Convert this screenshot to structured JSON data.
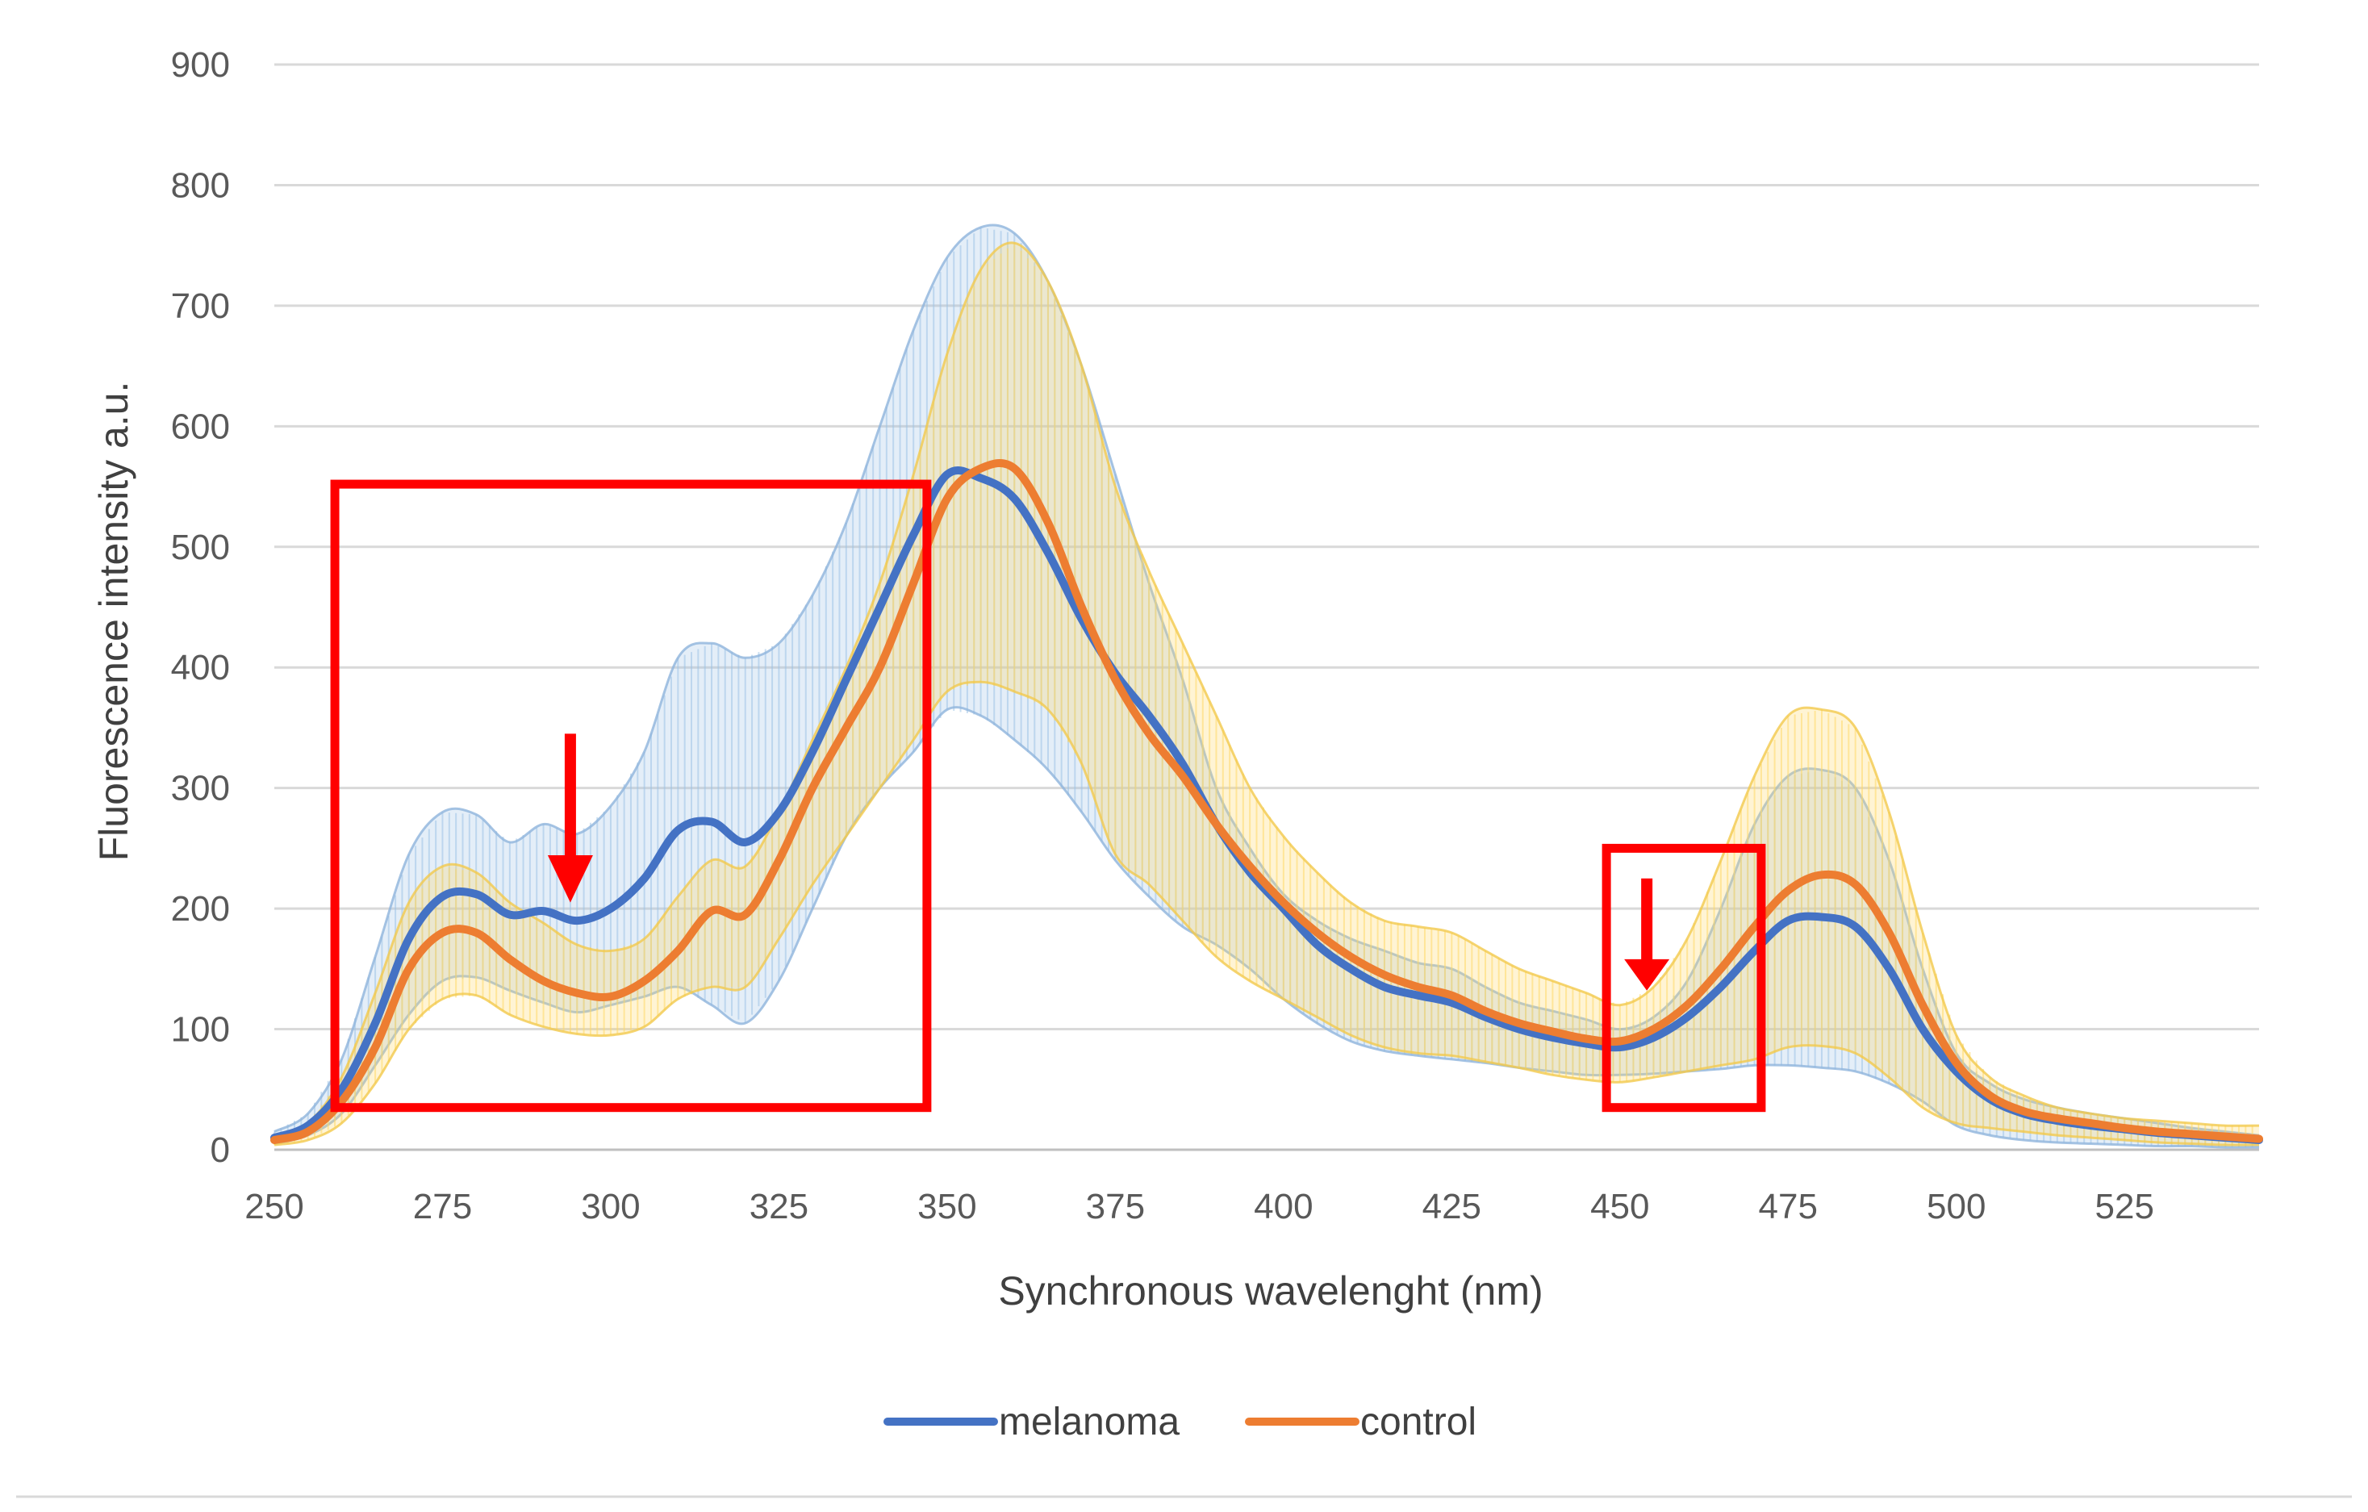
{
  "chart_data": {
    "type": "line",
    "title": "",
    "xlabel": "Synchronous wavelenght (nm)",
    "ylabel": "Fluorescence intensity a.u.",
    "xlim": [
      250,
      545
    ],
    "ylim": [
      0,
      900
    ],
    "xticks": [
      250,
      275,
      300,
      325,
      350,
      375,
      400,
      425,
      450,
      475,
      500,
      525
    ],
    "yticks": [
      0,
      100,
      200,
      300,
      400,
      500,
      600,
      700,
      800,
      900
    ],
    "grid": true,
    "legend_position": "bottom",
    "x": [
      250,
      255,
      260,
      265,
      270,
      275,
      280,
      285,
      290,
      295,
      300,
      305,
      310,
      315,
      320,
      325,
      330,
      335,
      340,
      345,
      350,
      355,
      360,
      365,
      370,
      375,
      380,
      385,
      390,
      395,
      400,
      405,
      410,
      415,
      420,
      425,
      430,
      435,
      440,
      445,
      450,
      455,
      460,
      465,
      470,
      475,
      480,
      485,
      490,
      495,
      500,
      505,
      510,
      515,
      520,
      525,
      530,
      535,
      540,
      545
    ],
    "series": [
      {
        "name": "melanoma",
        "color": "#4472C4",
        "values": [
          10,
          20,
          50,
          105,
          175,
          210,
          212,
          195,
          198,
          190,
          200,
          225,
          265,
          272,
          255,
          280,
          330,
          390,
          450,
          510,
          560,
          557,
          540,
          495,
          440,
          395,
          360,
          320,
          270,
          230,
          200,
          170,
          150,
          135,
          128,
          122,
          110,
          100,
          93,
          88,
          85,
          93,
          110,
          135,
          165,
          190,
          193,
          185,
          150,
          100,
          65,
          42,
          30,
          24,
          20,
          17,
          14,
          12,
          10,
          8
        ],
        "upper": [
          15,
          30,
          75,
          160,
          245,
          280,
          278,
          255,
          270,
          262,
          285,
          330,
          408,
          420,
          408,
          420,
          460,
          520,
          600,
          680,
          740,
          765,
          760,
          720,
          650,
          560,
          470,
          390,
          300,
          250,
          212,
          190,
          175,
          165,
          155,
          150,
          135,
          122,
          115,
          108,
          100,
          110,
          140,
          200,
          270,
          310,
          315,
          300,
          240,
          150,
          80,
          55,
          42,
          35,
          30,
          26,
          22,
          18,
          15,
          12
        ],
        "lower": [
          5,
          12,
          30,
          70,
          112,
          140,
          143,
          132,
          122,
          114,
          120,
          127,
          135,
          120,
          105,
          140,
          200,
          260,
          300,
          330,
          365,
          360,
          340,
          315,
          280,
          240,
          210,
          185,
          170,
          150,
          125,
          105,
          90,
          82,
          78,
          75,
          72,
          68,
          65,
          62,
          62,
          63,
          65,
          67,
          70,
          70,
          68,
          65,
          55,
          40,
          20,
          12,
          8,
          6,
          5,
          4,
          3,
          3,
          2,
          2
        ]
      },
      {
        "name": "control",
        "color": "#ED7D31",
        "values": [
          8,
          15,
          40,
          85,
          150,
          180,
          180,
          158,
          140,
          130,
          127,
          140,
          165,
          198,
          195,
          240,
          300,
          350,
          400,
          470,
          540,
          565,
          565,
          520,
          450,
          390,
          345,
          310,
          270,
          235,
          205,
          180,
          160,
          145,
          135,
          128,
          115,
          105,
          98,
          92,
          90,
          100,
          120,
          150,
          185,
          215,
          228,
          220,
          180,
          120,
          72,
          45,
          32,
          26,
          22,
          18,
          15,
          13,
          11,
          9
        ],
        "upper": [
          12,
          22,
          60,
          130,
          205,
          235,
          230,
          205,
          188,
          170,
          165,
          175,
          210,
          240,
          235,
          280,
          340,
          400,
          470,
          560,
          660,
          730,
          752,
          720,
          650,
          550,
          480,
          420,
          360,
          300,
          260,
          230,
          205,
          190,
          185,
          180,
          165,
          150,
          140,
          130,
          120,
          135,
          175,
          240,
          310,
          360,
          365,
          350,
          280,
          180,
          95,
          60,
          45,
          35,
          30,
          26,
          24,
          22,
          20,
          20
        ],
        "lower": [
          4,
          8,
          22,
          55,
          100,
          125,
          128,
          112,
          102,
          96,
          95,
          102,
          125,
          135,
          135,
          175,
          220,
          260,
          300,
          340,
          380,
          388,
          380,
          365,
          320,
          245,
          220,
          190,
          160,
          140,
          125,
          110,
          95,
          85,
          80,
          78,
          73,
          68,
          62,
          58,
          56,
          60,
          65,
          70,
          75,
          85,
          86,
          80,
          60,
          35,
          22,
          18,
          15,
          12,
          10,
          8,
          6,
          5,
          4,
          4
        ]
      }
    ],
    "annotations": [
      {
        "type": "rect",
        "x_range": [
          259,
          347
        ],
        "y_range": [
          35,
          552
        ],
        "color": "#FF0000"
      },
      {
        "type": "rect",
        "x_range": [
          448,
          471
        ],
        "y_range": [
          35,
          250
        ],
        "color": "#FF0000"
      },
      {
        "type": "arrow",
        "x": 294,
        "from_y": 345,
        "to_y": 205,
        "color": "#FF0000"
      },
      {
        "type": "arrow",
        "x": 454,
        "from_y": 225,
        "to_y": 132,
        "color": "#FF0000"
      }
    ]
  }
}
